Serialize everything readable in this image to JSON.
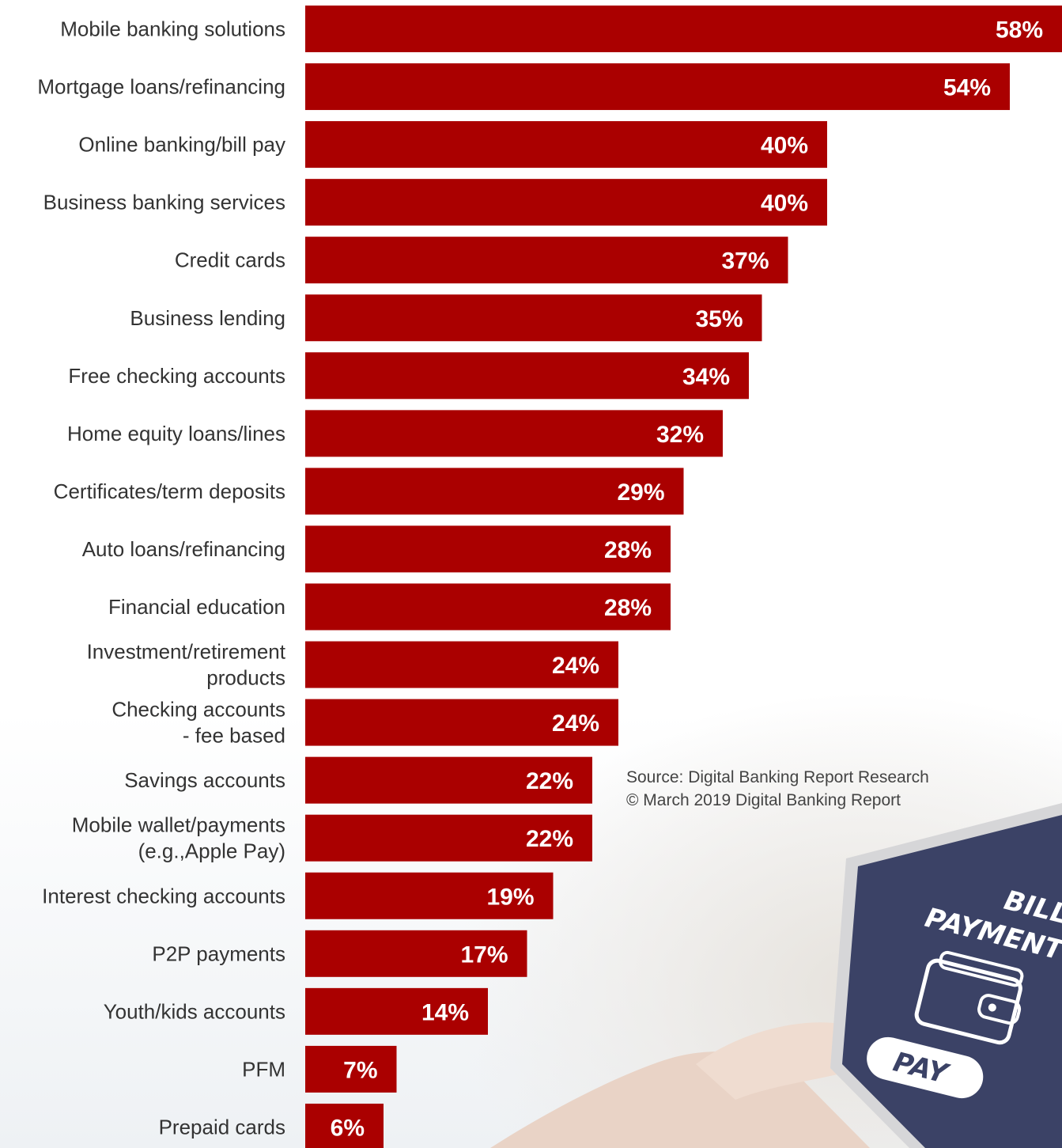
{
  "chart_data": {
    "type": "bar",
    "orientation": "horizontal",
    "categories": [
      [
        "Mobile banking solutions"
      ],
      [
        "Mortgage loans/refinancing"
      ],
      [
        "Online banking/bill pay"
      ],
      [
        "Business banking services"
      ],
      [
        "Credit cards"
      ],
      [
        "Business lending"
      ],
      [
        "Free checking accounts"
      ],
      [
        "Home equity loans/lines"
      ],
      [
        "Certificates/term deposits"
      ],
      [
        "Auto loans/refinancing"
      ],
      [
        "Financial education"
      ],
      [
        "Investment/retirement",
        "products"
      ],
      [
        "Checking accounts",
        "- fee based"
      ],
      [
        "Savings accounts"
      ],
      [
        "Mobile wallet/payments",
        "(e.g.,Apple Pay)"
      ],
      [
        "Interest checking accounts"
      ],
      [
        "P2P payments"
      ],
      [
        "Youth/kids accounts"
      ],
      [
        "PFM"
      ],
      [
        "Prepaid cards"
      ]
    ],
    "values": [
      58,
      54,
      40,
      40,
      37,
      35,
      34,
      32,
      29,
      28,
      28,
      24,
      24,
      22,
      22,
      19,
      17,
      14,
      7,
      6
    ],
    "value_labels": [
      "58%",
      "54%",
      "40%",
      "40%",
      "37%",
      "35%",
      "34%",
      "32%",
      "29%",
      "28%",
      "28%",
      "24%",
      "24%",
      "22%",
      "22%",
      "19%",
      "17%",
      "14%",
      "7%",
      "6%"
    ],
    "bar_color": "#AA0000",
    "xlim": [
      0,
      58
    ],
    "grid": false,
    "legend": "none"
  },
  "source": {
    "line1": "Source: Digital Banking Report Research",
    "line2": "© March 2019 Digital Banking Report"
  },
  "illustration": {
    "screen_line1": "BILL",
    "screen_line2": "PAYMENT",
    "button_label": "PAY",
    "icon": "wallet-icon"
  }
}
